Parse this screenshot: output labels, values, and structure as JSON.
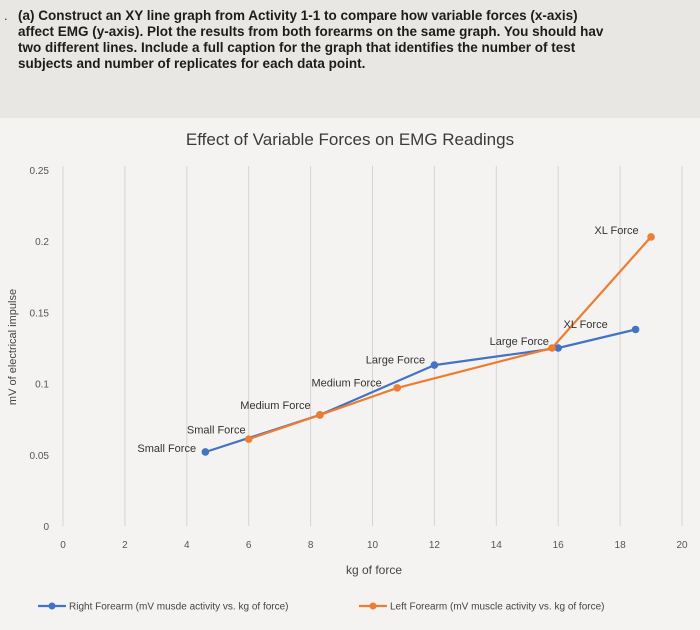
{
  "bullet": ".",
  "question": "(a) Construct an XY line graph from Activity 1-1 to compare how variable forces (x-axis)\naffect EMG (y-axis). Plot the results from both forearms on the same graph.  You should hav\ntwo different lines.  Include a full caption for the graph that identifies the number of test\nsubjects and number of replicates for each data point.",
  "chart_data": {
    "type": "line",
    "title": "Effect of Variable Forces on EMG Readings",
    "xlabel": "kg of force",
    "ylabel": "mV of electrical impulse",
    "xlim": [
      0,
      20
    ],
    "ylim": [
      0,
      0.25
    ],
    "x_ticks": [
      "0",
      "2",
      "4",
      "6",
      "8",
      "10",
      "12",
      "14",
      "16",
      "18",
      "20"
    ],
    "y_ticks": [
      "0",
      "0.05",
      "0.1",
      "0.15",
      "0.2",
      "0.25"
    ],
    "grid": "vertical",
    "legend_position": "bottom",
    "series": [
      {
        "name": "Right Forearm (mV musde activity vs. kg of force)",
        "color": "#4472c4",
        "x": [
          4.6,
          8.3,
          12.0,
          16.0,
          18.5
        ],
        "y": [
          0.052,
          0.078,
          0.113,
          0.125,
          0.138
        ]
      },
      {
        "name": "Left Forearm (mV muscle activity vs. kg of force)",
        "color": "#ed7d31",
        "x": [
          6.0,
          8.3,
          10.8,
          15.8,
          19.0
        ],
        "y": [
          0.061,
          0.078,
          0.097,
          0.125,
          0.203
        ]
      }
    ],
    "annotations": [
      {
        "text": "Small Force",
        "x": 4.3,
        "y": 0.052
      },
      {
        "text": "Small Force",
        "x": 5.9,
        "y": 0.065
      },
      {
        "text": "Medium Force",
        "x": 8.0,
        "y": 0.082
      },
      {
        "text": "Medium Force",
        "x": 10.3,
        "y": 0.098
      },
      {
        "text": "Large Force",
        "x": 11.7,
        "y": 0.114
      },
      {
        "text": "Large Force",
        "x": 15.7,
        "y": 0.127
      },
      {
        "text": "XL Force",
        "x": 17.6,
        "y": 0.139
      },
      {
        "text": "XL Force",
        "x": 18.6,
        "y": 0.205
      }
    ]
  }
}
